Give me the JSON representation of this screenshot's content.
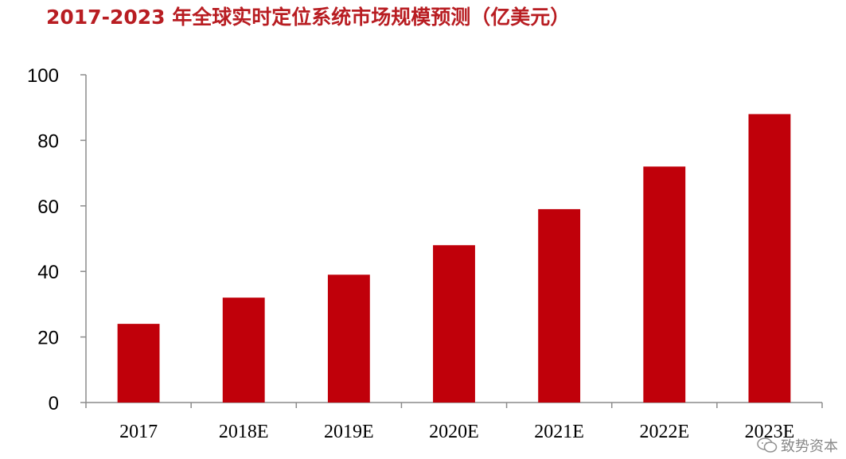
{
  "chart_data": {
    "type": "bar",
    "title": "2017-2023 年全球实时定位系统市场规模预测（亿美元）",
    "categories": [
      "2017",
      "2018E",
      "2019E",
      "2020E",
      "2021E",
      "2022E",
      "2023E"
    ],
    "values": [
      24,
      32,
      39,
      48,
      59,
      72,
      88
    ],
    "ylim": [
      0,
      100
    ],
    "yticks": [
      "0",
      "20",
      "40",
      "60",
      "80",
      "100"
    ],
    "xlabel": "",
    "ylabel": "",
    "grid": false,
    "bar_color": "#c0000a"
  },
  "watermark": {
    "text": "致势资本",
    "icon": "wechat-icon"
  }
}
